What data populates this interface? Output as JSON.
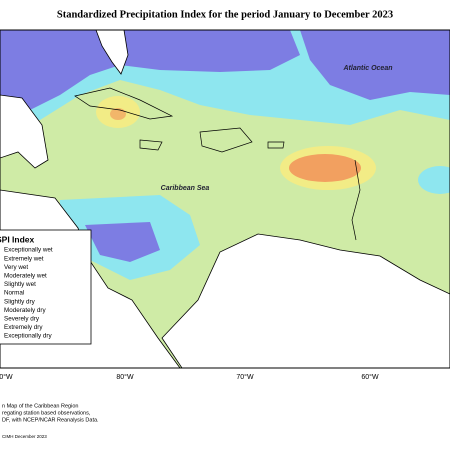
{
  "title": "Standardized Precipitation Index for the period January to December 2023",
  "labels": {
    "atlantic": "Atlantic Ocean",
    "caribbean": "Caribbean Sea"
  },
  "legend": {
    "title": "SPI Index",
    "items": [
      "Exceptionally wet",
      "Extremely wet",
      "Very wet",
      "Moderately wet",
      "Slightly wet",
      "Normal",
      "Slightly dry",
      "Moderately dry",
      "Severely dry",
      "Extremely dry",
      "Exceptionally dry"
    ]
  },
  "longitudes": [
    "0°W",
    "80°W",
    "70°W",
    "60°W"
  ],
  "credits": [
    "n Map of the Caribbean Region",
    "regating station based observations,",
    "DF, with NCEP/NCAR Reanalysis Data.",
    "CIMH December 2023"
  ]
}
